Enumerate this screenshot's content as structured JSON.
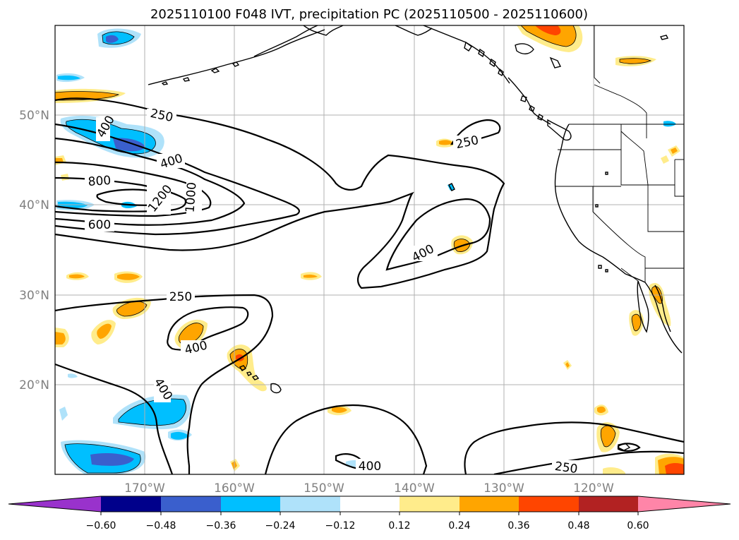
{
  "title": "2025110100 F048 IVT, precipitation PC (2025110500 - 2025110600)",
  "map": {
    "lon_range": [
      -180,
      -110
    ],
    "lat_range": [
      10,
      60
    ],
    "lon_ticks": [
      {
        "value": -170,
        "label": "170°W"
      },
      {
        "value": -160,
        "label": "160°W"
      },
      {
        "value": -150,
        "label": "150°W"
      },
      {
        "value": -140,
        "label": "140°W"
      },
      {
        "value": -130,
        "label": "130°W"
      },
      {
        "value": -120,
        "label": "120°W"
      }
    ],
    "lat_ticks": [
      {
        "value": 20,
        "label": "20°N"
      },
      {
        "value": 30,
        "label": "30°N"
      },
      {
        "value": 40,
        "label": "40°N"
      },
      {
        "value": 50,
        "label": "50°N"
      }
    ],
    "grid": true,
    "ivt_contour_labels": [
      "250",
      "250",
      "250",
      "250",
      "400",
      "400",
      "400",
      "400",
      "400",
      "400",
      "600",
      "800",
      "1000",
      "1200"
    ]
  },
  "colorbar": {
    "orientation": "horizontal",
    "extend": "both",
    "colors": [
      "#9932cc",
      "#00008b",
      "#3a5fcd",
      "#00bfff",
      "#afe2fa",
      "#ffffff",
      "#ffec8b",
      "#ffa500",
      "#ff4500",
      "#b22222",
      "#ff85a8"
    ],
    "tick_labels": [
      "−0.60",
      "−0.48",
      "−0.36",
      "−0.24",
      "−0.12",
      "0.12",
      "0.24",
      "0.36",
      "0.48",
      "0.60"
    ]
  }
}
